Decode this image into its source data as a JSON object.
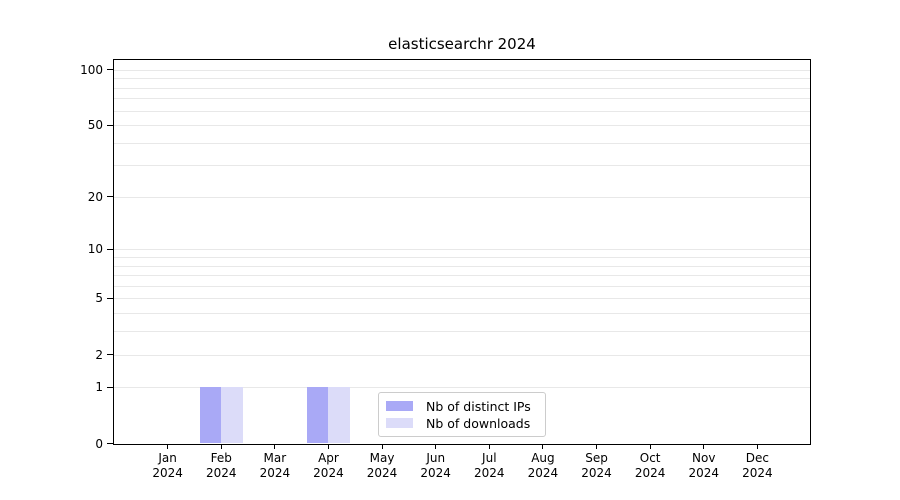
{
  "chart_data": {
    "type": "bar",
    "title": "elasticsearchr 2024",
    "x_tick_labels_line1": [
      "Jan",
      "Feb",
      "Mar",
      "Apr",
      "May",
      "Jun",
      "Jul",
      "Aug",
      "Sep",
      "Oct",
      "Nov",
      "Dec"
    ],
    "x_tick_labels_line2": "2024",
    "series": [
      {
        "name": "Nb of distinct IPs",
        "color": "#a9a9f6",
        "values": [
          0,
          1,
          0,
          1,
          0,
          0,
          0,
          0,
          0,
          0,
          0,
          0
        ]
      },
      {
        "name": "Nb of downloads",
        "color": "#dcdcf9",
        "values": [
          0,
          1,
          0,
          1,
          0,
          0,
          0,
          0,
          0,
          0,
          0,
          0
        ]
      }
    ],
    "yscale": "log1p",
    "ylim": [
      0,
      113
    ],
    "yticks": [
      0,
      1,
      2,
      5,
      10,
      20,
      50,
      100
    ],
    "y_gridlines": [
      1,
      2,
      3,
      4,
      5,
      6,
      7,
      8,
      9,
      10,
      20,
      30,
      40,
      50,
      60,
      70,
      80,
      90,
      100
    ],
    "grid": true,
    "legend_position": "inside-bottom-center"
  },
  "colors": {
    "background": "#ffffff",
    "text": "#000000",
    "spine": "#000000",
    "grid": "#e8e8e8",
    "legend_border": "#cccccc"
  }
}
